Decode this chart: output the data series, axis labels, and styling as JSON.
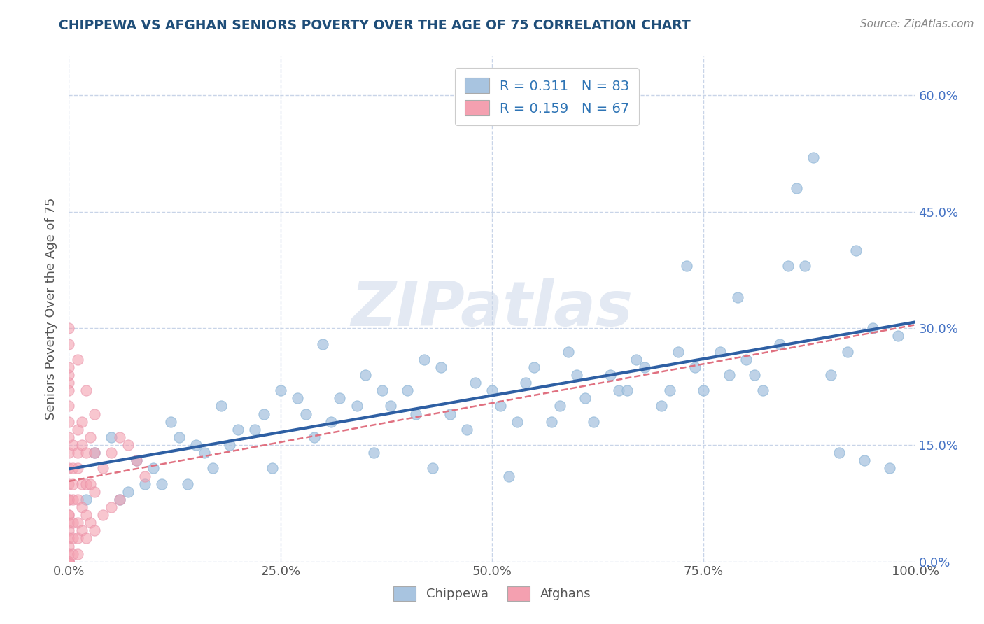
{
  "title": "CHIPPEWA VS AFGHAN SENIORS POVERTY OVER THE AGE OF 75 CORRELATION CHART",
  "source": "Source: ZipAtlas.com",
  "ylabel": "Seniors Poverty Over the Age of 75",
  "R_chippewa": 0.311,
  "N_chippewa": 83,
  "R_afghan": 0.159,
  "N_afghan": 67,
  "chippewa_color": "#a8c4e0",
  "afghan_color": "#f4a0b0",
  "trend_chippewa_color": "#2e5fa3",
  "trend_afghan_dashed_color": "#e07080",
  "title_color": "#1f4e79",
  "legend_text_color": "#2e74b5",
  "background_color": "#ffffff",
  "grid_color": "#c8d4e8",
  "watermark_color": "#c8d4e8",
  "xlim": [
    0.0,
    1.0
  ],
  "ylim": [
    0.0,
    0.65
  ],
  "xticks": [
    0.0,
    0.25,
    0.5,
    0.75,
    1.0
  ],
  "xticklabels": [
    "0.0%",
    "25.0%",
    "50.0%",
    "75.0%",
    "100.0%"
  ],
  "yticks": [
    0.0,
    0.15,
    0.3,
    0.45,
    0.6
  ],
  "yticklabels": [
    "0.0%",
    "15.0%",
    "30.0%",
    "45.0%",
    "60.0%"
  ],
  "chip_x": [
    0.03,
    0.05,
    0.08,
    0.12,
    0.15,
    0.18,
    0.22,
    0.25,
    0.28,
    0.3,
    0.32,
    0.35,
    0.38,
    0.4,
    0.42,
    0.45,
    0.48,
    0.5,
    0.53,
    0.55,
    0.58,
    0.6,
    0.62,
    0.65,
    0.68,
    0.7,
    0.72,
    0.75,
    0.78,
    0.8,
    0.82,
    0.85,
    0.88,
    0.9,
    0.92,
    0.95,
    0.98,
    0.1,
    0.13,
    0.16,
    0.2,
    0.23,
    0.27,
    0.31,
    0.34,
    0.37,
    0.41,
    0.44,
    0.47,
    0.51,
    0.54,
    0.57,
    0.61,
    0.64,
    0.67,
    0.71,
    0.74,
    0.77,
    0.81,
    0.84,
    0.87,
    0.91,
    0.94,
    0.97,
    0.06,
    0.09,
    0.14,
    0.19,
    0.24,
    0.29,
    0.36,
    0.43,
    0.52,
    0.59,
    0.66,
    0.73,
    0.79,
    0.86,
    0.93,
    0.02,
    0.07,
    0.11,
    0.17
  ],
  "chip_y": [
    0.14,
    0.16,
    0.13,
    0.18,
    0.15,
    0.2,
    0.17,
    0.22,
    0.19,
    0.28,
    0.21,
    0.24,
    0.2,
    0.22,
    0.26,
    0.19,
    0.23,
    0.22,
    0.18,
    0.25,
    0.2,
    0.24,
    0.18,
    0.22,
    0.25,
    0.2,
    0.27,
    0.22,
    0.24,
    0.26,
    0.22,
    0.38,
    0.52,
    0.24,
    0.27,
    0.3,
    0.29,
    0.12,
    0.16,
    0.14,
    0.17,
    0.19,
    0.21,
    0.18,
    0.2,
    0.22,
    0.19,
    0.25,
    0.17,
    0.2,
    0.23,
    0.18,
    0.21,
    0.24,
    0.26,
    0.22,
    0.25,
    0.27,
    0.24,
    0.28,
    0.38,
    0.14,
    0.13,
    0.12,
    0.08,
    0.1,
    0.1,
    0.15,
    0.12,
    0.16,
    0.14,
    0.12,
    0.11,
    0.27,
    0.22,
    0.38,
    0.34,
    0.48,
    0.4,
    0.08,
    0.09,
    0.1,
    0.12
  ],
  "afg_x": [
    0.0,
    0.0,
    0.0,
    0.0,
    0.0,
    0.0,
    0.0,
    0.0,
    0.0,
    0.0,
    0.0,
    0.0,
    0.0,
    0.0,
    0.0,
    0.0,
    0.0,
    0.0,
    0.0,
    0.0,
    0.0,
    0.0,
    0.005,
    0.005,
    0.005,
    0.005,
    0.005,
    0.005,
    0.005,
    0.01,
    0.01,
    0.01,
    0.01,
    0.01,
    0.01,
    0.01,
    0.015,
    0.015,
    0.015,
    0.015,
    0.015,
    0.02,
    0.02,
    0.02,
    0.02,
    0.025,
    0.025,
    0.025,
    0.03,
    0.03,
    0.03,
    0.04,
    0.04,
    0.05,
    0.05,
    0.06,
    0.06,
    0.07,
    0.08,
    0.09,
    0.01,
    0.02,
    0.03,
    0.0,
    0.0,
    0.0,
    0.0
  ],
  "afg_y": [
    0.12,
    0.1,
    0.08,
    0.06,
    0.05,
    0.04,
    0.03,
    0.02,
    0.01,
    0.0,
    0.0,
    0.0,
    0.0,
    0.0,
    0.14,
    0.16,
    0.18,
    0.2,
    0.22,
    0.24,
    0.08,
    0.06,
    0.15,
    0.12,
    0.1,
    0.08,
    0.05,
    0.03,
    0.01,
    0.17,
    0.14,
    0.12,
    0.08,
    0.05,
    0.03,
    0.01,
    0.18,
    0.15,
    0.1,
    0.07,
    0.04,
    0.14,
    0.1,
    0.06,
    0.03,
    0.16,
    0.1,
    0.05,
    0.14,
    0.09,
    0.04,
    0.12,
    0.06,
    0.14,
    0.07,
    0.16,
    0.08,
    0.15,
    0.13,
    0.11,
    0.26,
    0.22,
    0.19,
    0.28,
    0.3,
    0.25,
    0.23
  ]
}
